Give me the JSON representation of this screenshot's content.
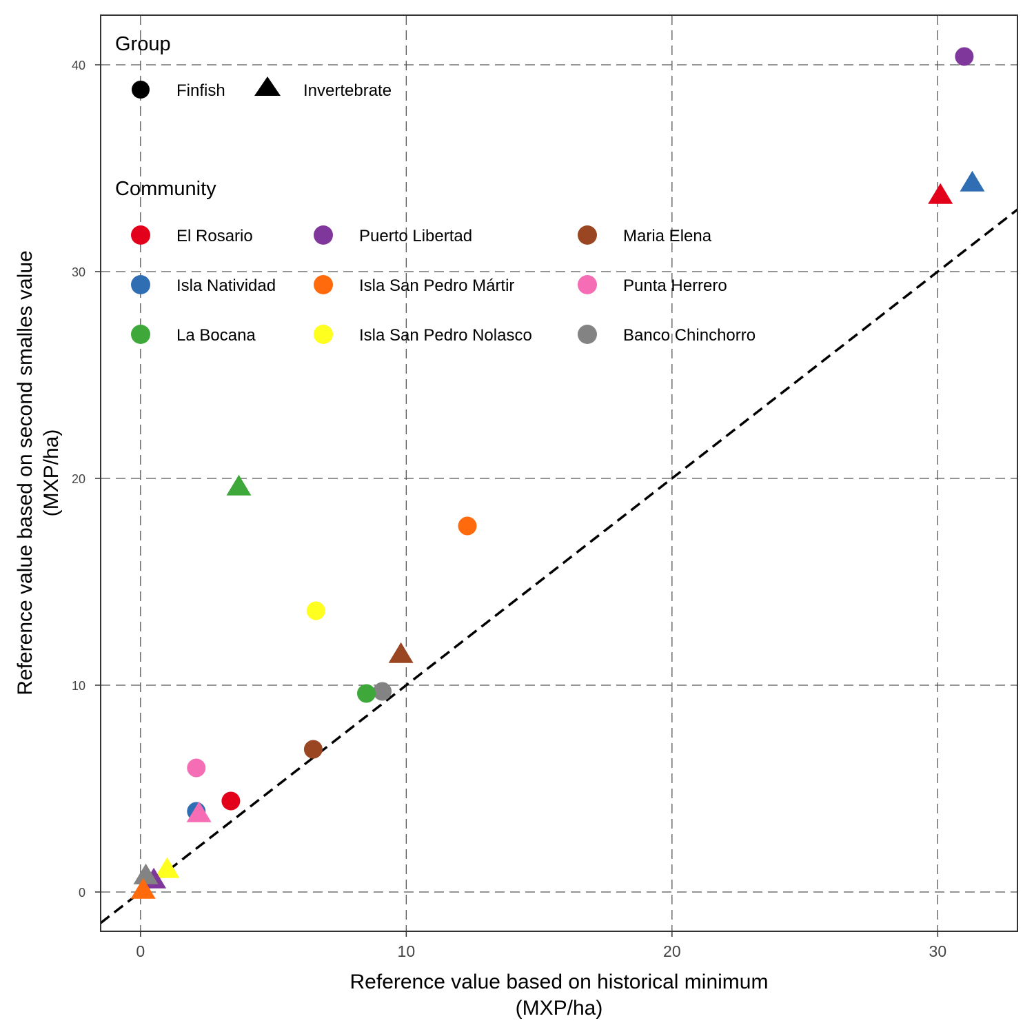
{
  "chart_data": {
    "type": "scatter",
    "xlabel": [
      "Reference value based on historical minimum",
      "(MXP/ha)"
    ],
    "ylabel": [
      "Reference value based on second smalles value",
      "(MXP/ha)"
    ],
    "xlim": [
      -1.5,
      33
    ],
    "ylim": [
      -1.9,
      42.4
    ],
    "x_ticks": [
      0,
      10,
      20,
      30
    ],
    "y_ticks": [
      0,
      10,
      20,
      30,
      40
    ],
    "grid": "dashed",
    "reference_line": {
      "type": "identity",
      "style": "dashed"
    },
    "legend": {
      "group_title": "Group",
      "groups": [
        {
          "name": "Finfish",
          "shape": "circle"
        },
        {
          "name": "Invertebrate",
          "shape": "triangle"
        }
      ],
      "community_title": "Community",
      "communities": [
        {
          "name": "El Rosario",
          "color": "#e3001b"
        },
        {
          "name": "Puerto Libertad",
          "color": "#80379b"
        },
        {
          "name": "Maria Elena",
          "color": "#9a4622"
        },
        {
          "name": "Isla Natividad",
          "color": "#2f6eb2"
        },
        {
          "name": "Isla San Pedro Mártir",
          "color": "#ff6a0c"
        },
        {
          "name": "Punta Herrero",
          "color": "#f56db4"
        },
        {
          "name": "La Bocana",
          "color": "#3ea83a"
        },
        {
          "name": "Isla San Pedro Nolasco",
          "color": "#ffff1f"
        },
        {
          "name": "Banco Chinchorro",
          "color": "#838383"
        }
      ]
    },
    "points": [
      {
        "community": "Puerto Libertad",
        "group": "Finfish",
        "x": 31.0,
        "y": 40.4
      },
      {
        "community": "Isla Natividad",
        "group": "Invertebrate",
        "x": 31.3,
        "y": 34.3
      },
      {
        "community": "El Rosario",
        "group": "Invertebrate",
        "x": 30.1,
        "y": 33.7
      },
      {
        "community": "La Bocana",
        "group": "Invertebrate",
        "x": 3.7,
        "y": 19.6
      },
      {
        "community": "Isla San Pedro Mártir",
        "group": "Finfish",
        "x": 12.3,
        "y": 17.7
      },
      {
        "community": "Isla San Pedro Nolasco",
        "group": "Finfish",
        "x": 6.6,
        "y": 13.6
      },
      {
        "community": "Maria Elena",
        "group": "Invertebrate",
        "x": 9.8,
        "y": 11.5
      },
      {
        "community": "Banco Chinchorro",
        "group": "Finfish",
        "x": 9.1,
        "y": 9.7
      },
      {
        "community": "La Bocana",
        "group": "Finfish",
        "x": 8.5,
        "y": 9.6
      },
      {
        "community": "Maria Elena",
        "group": "Finfish",
        "x": 6.5,
        "y": 6.9
      },
      {
        "community": "Punta Herrero",
        "group": "Finfish",
        "x": 2.1,
        "y": 6.0
      },
      {
        "community": "El Rosario",
        "group": "Finfish",
        "x": 3.4,
        "y": 4.4
      },
      {
        "community": "Isla Natividad",
        "group": "Finfish",
        "x": 2.1,
        "y": 3.9
      },
      {
        "community": "Punta Herrero",
        "group": "Invertebrate",
        "x": 2.2,
        "y": 3.8
      },
      {
        "community": "Isla San Pedro Nolasco",
        "group": "Invertebrate",
        "x": 1.0,
        "y": 1.1
      },
      {
        "community": "Puerto Libertad",
        "group": "Invertebrate",
        "x": 0.5,
        "y": 0.6
      },
      {
        "community": "Banco Chinchorro",
        "group": "Invertebrate",
        "x": 0.2,
        "y": 0.8
      },
      {
        "community": "Isla San Pedro Mártir",
        "group": "Invertebrate",
        "x": 0.1,
        "y": 0.1
      }
    ]
  }
}
